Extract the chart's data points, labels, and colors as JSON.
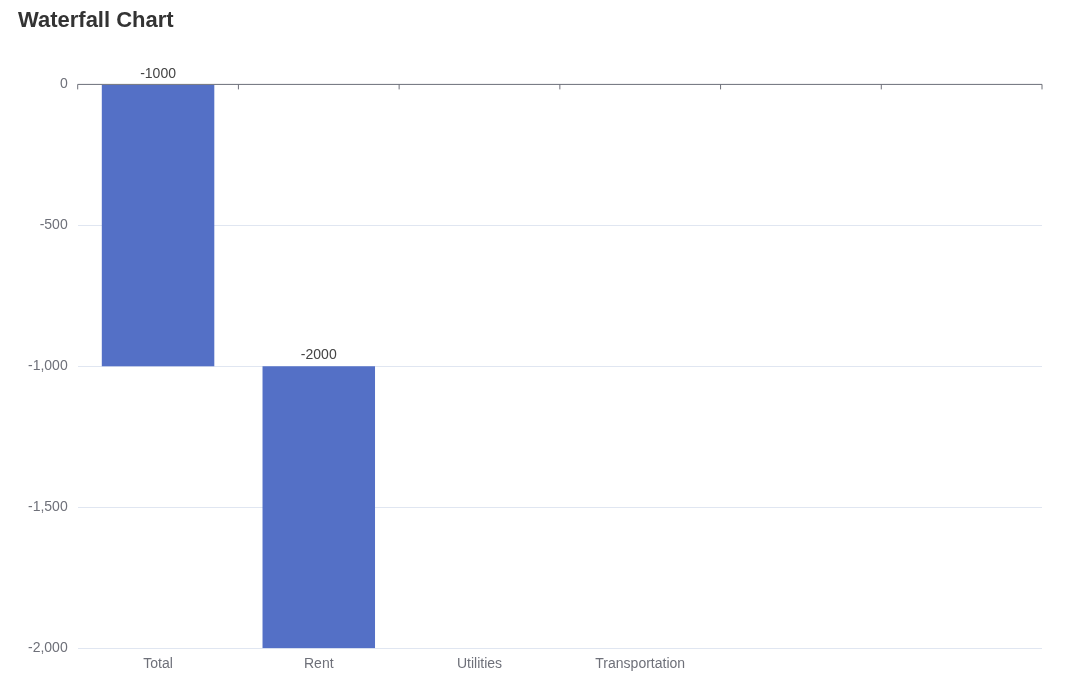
{
  "chart_data": {
    "type": "bar",
    "title": "Waterfall Chart",
    "categories": [
      "Total",
      "Rent",
      "Utilities",
      "Transportation",
      null,
      null
    ],
    "base": [
      0,
      -1000,
      null,
      null,
      null,
      null
    ],
    "values": [
      -1000,
      -1000,
      null,
      null,
      null,
      null
    ],
    "value_labels": [
      "-1000",
      "-2000",
      null,
      null,
      null,
      null
    ],
    "color": "#5470c6",
    "ylim": [
      -2000,
      0
    ],
    "yticks": [
      {
        "value": -2000,
        "label": "-2,000"
      },
      {
        "value": -1500,
        "label": "-1,500"
      },
      {
        "value": -1000,
        "label": "-1,000"
      },
      {
        "value": -500,
        "label": "-500"
      },
      0
    ],
    "grid": "y"
  }
}
